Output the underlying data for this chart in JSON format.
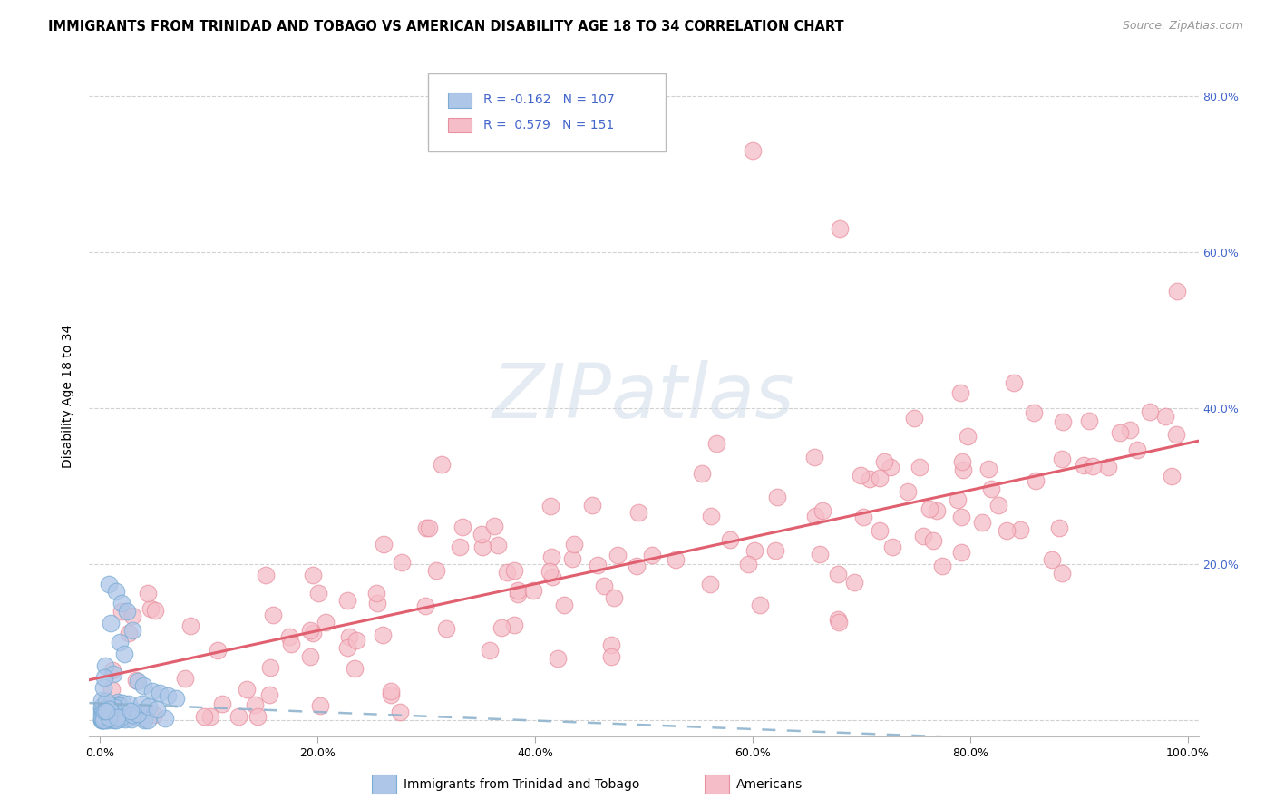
{
  "title": "IMMIGRANTS FROM TRINIDAD AND TOBAGO VS AMERICAN DISABILITY AGE 18 TO 34 CORRELATION CHART",
  "source": "Source: ZipAtlas.com",
  "ylabel": "Disability Age 18 to 34",
  "xlim": [
    -0.01,
    1.01
  ],
  "ylim": [
    -0.02,
    0.85
  ],
  "grid_color": "#cccccc",
  "background_color": "#ffffff",
  "watermark": "ZIPatlas",
  "legend_r1": "R = -0.162",
  "legend_n1": "N = 107",
  "legend_r2": "R =  0.579",
  "legend_n2": "N = 151",
  "blue_face": "#aec6e8",
  "blue_edge": "#7aacd4",
  "blue_line": "#8ab0cc",
  "pink_face": "#f5bdc8",
  "pink_edge": "#e8909f",
  "pink_line": "#e06070",
  "title_fontsize": 10.5,
  "source_fontsize": 9,
  "axis_label_fontsize": 10,
  "tick_fontsize": 9,
  "right_tick_color": "#4466cc",
  "legend_text_color": "#4466cc",
  "dot_size": 180,
  "pink_slope": 0.3,
  "pink_intercept": 0.055,
  "blue_slope": -0.055,
  "blue_intercept": 0.022
}
